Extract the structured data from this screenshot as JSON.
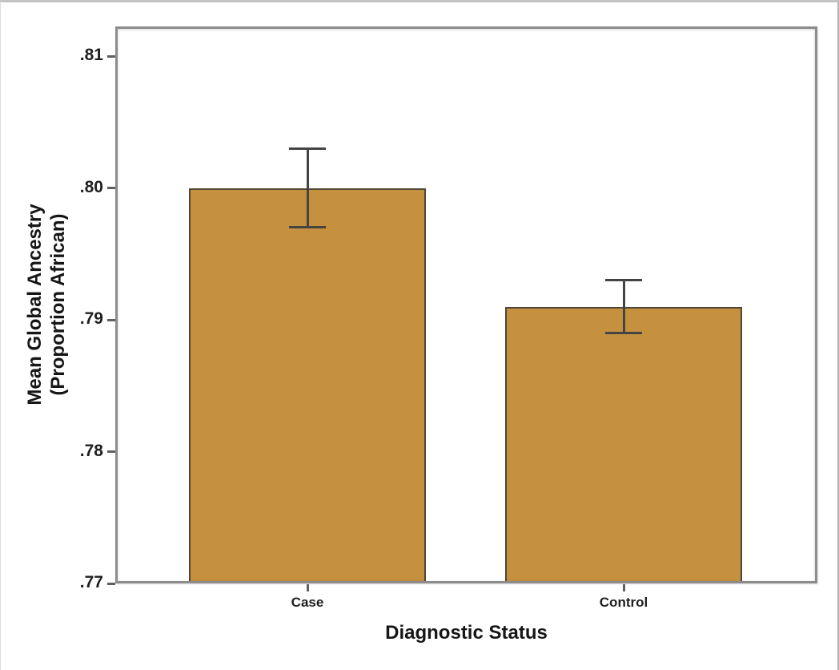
{
  "chart_data": {
    "type": "bar",
    "title": "",
    "xlabel": "Diagnostic Status",
    "ylabel": "Mean Global Ancestry (Proportion African)",
    "ylabel_lines": [
      "Mean Global Ancestry",
      "(Proportion African)"
    ],
    "categories": [
      "Case",
      "Control"
    ],
    "values": [
      0.8,
      0.791
    ],
    "error_upper": [
      0.803,
      0.793
    ],
    "error_lower": [
      0.797,
      0.789
    ],
    "yticks": {
      "labels": [
        ".77",
        ".78",
        ".79",
        ".80",
        ".81"
      ],
      "values": [
        0.77,
        0.78,
        0.79,
        0.8,
        0.81
      ]
    },
    "ylim": [
      0.77,
      0.8122
    ],
    "grid": false,
    "legend_position": "none",
    "colors": {
      "bar_fill": "#C6913F",
      "bar_border": "#4F4636",
      "axis_frame": "#8C8C8C",
      "tick_mark": "#5F5F5F",
      "error_bar": "#444444",
      "text": "#1F1F1F"
    }
  }
}
